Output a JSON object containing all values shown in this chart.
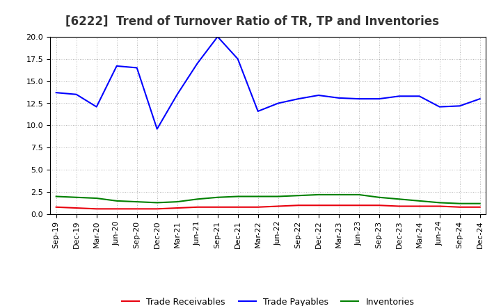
{
  "title": "[6222]  Trend of Turnover Ratio of TR, TP and Inventories",
  "x_labels": [
    "Sep-19",
    "Dec-19",
    "Mar-20",
    "Jun-20",
    "Sep-20",
    "Dec-20",
    "Mar-21",
    "Jun-21",
    "Sep-21",
    "Dec-21",
    "Mar-22",
    "Jun-22",
    "Sep-22",
    "Dec-22",
    "Mar-23",
    "Jun-23",
    "Sep-23",
    "Dec-23",
    "Mar-24",
    "Jun-24",
    "Sep-24",
    "Dec-24"
  ],
  "trade_receivables": [
    0.8,
    0.7,
    0.6,
    0.6,
    0.6,
    0.6,
    0.7,
    0.8,
    0.8,
    0.8,
    0.8,
    0.9,
    1.0,
    1.0,
    1.0,
    1.0,
    1.0,
    0.9,
    0.9,
    0.9,
    0.8,
    0.8
  ],
  "trade_payables": [
    13.7,
    13.5,
    12.1,
    16.7,
    16.5,
    9.6,
    13.5,
    17.0,
    20.0,
    17.5,
    11.6,
    12.5,
    13.0,
    13.4,
    13.1,
    13.0,
    13.0,
    13.3,
    13.3,
    12.1,
    12.2,
    13.0
  ],
  "inventories": [
    2.0,
    1.9,
    1.8,
    1.5,
    1.4,
    1.3,
    1.4,
    1.7,
    1.9,
    2.0,
    2.0,
    2.0,
    2.1,
    2.2,
    2.2,
    2.2,
    1.9,
    1.7,
    1.5,
    1.3,
    1.2,
    1.2
  ],
  "tr_color": "#e8000d",
  "tp_color": "#0000ff",
  "inv_color": "#008000",
  "ylim": [
    0.0,
    20.0
  ],
  "yticks": [
    0.0,
    2.5,
    5.0,
    7.5,
    10.0,
    12.5,
    15.0,
    17.5,
    20.0
  ],
  "background_color": "#ffffff",
  "grid_color": "#aaaaaa",
  "legend_tr": "Trade Receivables",
  "legend_tp": "Trade Payables",
  "legend_inv": "Inventories",
  "title_fontsize": 12,
  "tick_fontsize": 8,
  "legend_fontsize": 9
}
